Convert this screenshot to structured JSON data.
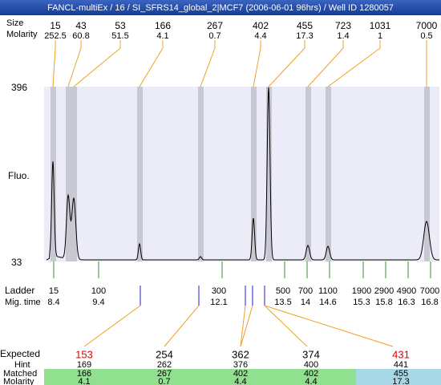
{
  "title": "FANCL-multiEx / 16 / SI_SFRS14_global_2|MCF7 (2006-06-01 96hrs) / Well ID 1280057",
  "header_labels": {
    "size": "Size",
    "molarity": "Molarity"
  },
  "peaks": {
    "sizes": [
      15,
      43,
      53,
      166,
      267,
      402,
      455,
      723,
      1031,
      7000
    ],
    "molarity": [
      252.5,
      60.8,
      51.5,
      4.1,
      0.7,
      4.4,
      17.3,
      1.4,
      1,
      0.5
    ]
  },
  "y_axis": {
    "top": 396,
    "bottom": 33,
    "label": "Fluo."
  },
  "ladder": {
    "label": "Ladder",
    "time_label": "Mig. time",
    "sizes": [
      15,
      100,
      300,
      500,
      700,
      1100,
      1900,
      2900,
      4900,
      7000
    ],
    "mig_times": [
      8.4,
      9.4,
      12.1,
      13.5,
      14,
      14.6,
      15.3,
      15.8,
      16.3,
      16.8
    ]
  },
  "matches": {
    "labels": {
      "expected": "Expected",
      "hint": "Hint",
      "matched": "Matched",
      "molarity": "Molarity"
    },
    "expected": [
      153,
      254,
      362,
      374,
      431
    ],
    "expected_colors": [
      "#e00000",
      "#000000",
      "#000000",
      "#000000",
      "#e00000"
    ],
    "hint": [
      169,
      262,
      376,
      400,
      441
    ],
    "matched": [
      166,
      267,
      402,
      402,
      455
    ],
    "molarity": [
      4.1,
      0.7,
      4.4,
      4.4,
      17.3
    ],
    "row_colors": [
      "#90e090",
      "#90e090",
      "#90e090",
      "#90e090",
      "#a8d8e8"
    ]
  }
}
